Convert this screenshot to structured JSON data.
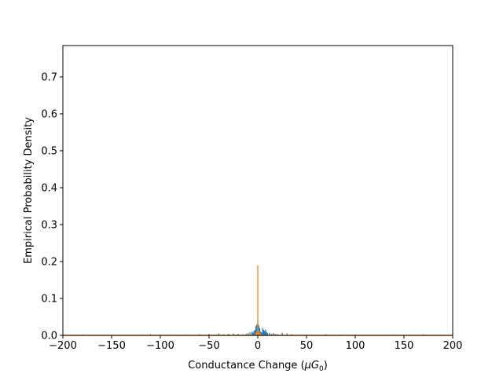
{
  "chart_data": {
    "type": "bar",
    "title": "",
    "xlabel": "Conductance Change (",
    "xlabel_symbol": "μG",
    "xlabel_subscript": "0",
    "xlabel_close": ")",
    "ylabel": "Empirical Probability Density",
    "xlim": [
      -200,
      200
    ],
    "ylim": [
      0,
      0.785
    ],
    "xticks": [
      -200,
      -150,
      -100,
      -50,
      0,
      50,
      100,
      150,
      200
    ],
    "xtick_labels": [
      "−200",
      "−150",
      "−100",
      "−50",
      "0",
      "50",
      "100",
      "150",
      "200"
    ],
    "yticks": [
      0.0,
      0.1,
      0.2,
      0.3,
      0.4,
      0.5,
      0.6,
      0.7
    ],
    "ytick_labels": [
      "0.0",
      "0.1",
      "0.2",
      "0.3",
      "0.4",
      "0.5",
      "0.6",
      "0.7"
    ],
    "grid": false,
    "series": [
      {
        "color": "#1f77b4",
        "bin_width": 1,
        "x": [
          -180,
          -120,
          -110,
          -90,
          -75,
          -60,
          -50,
          -45,
          -40,
          -35,
          -30,
          -25,
          -20,
          -15,
          -12,
          -10,
          -8,
          -6,
          -5,
          -4,
          -3,
          -2,
          -1,
          0,
          1,
          2,
          3,
          4,
          5,
          6,
          7,
          8,
          9,
          10,
          12,
          14,
          16,
          18,
          20,
          25,
          30,
          35,
          45,
          55,
          70,
          85,
          100,
          140,
          170
        ],
        "values": [
          0.002,
          0.002,
          0.003,
          0.002,
          0.002,
          0.003,
          0.004,
          0.002,
          0.005,
          0.003,
          0.004,
          0.005,
          0.004,
          0.003,
          0.004,
          0.006,
          0.008,
          0.01,
          0.007,
          0.012,
          0.015,
          0.025,
          0.03,
          0.043,
          0.028,
          0.02,
          0.01,
          0.008,
          0.02,
          0.015,
          0.012,
          0.016,
          0.009,
          0.006,
          0.007,
          0.004,
          0.006,
          0.004,
          0.003,
          0.007,
          0.005,
          0.003,
          0.002,
          0.002,
          0.003,
          0.002,
          0.002,
          0.002,
          0.003
        ]
      },
      {
        "color": "#ff7f0e",
        "bin_width": 1,
        "x": [
          -2,
          -1,
          0,
          1,
          2,
          3,
          5
        ],
        "values": [
          0.006,
          0.01,
          0.19,
          0.012,
          0.008,
          0.004,
          0.003
        ]
      }
    ]
  }
}
